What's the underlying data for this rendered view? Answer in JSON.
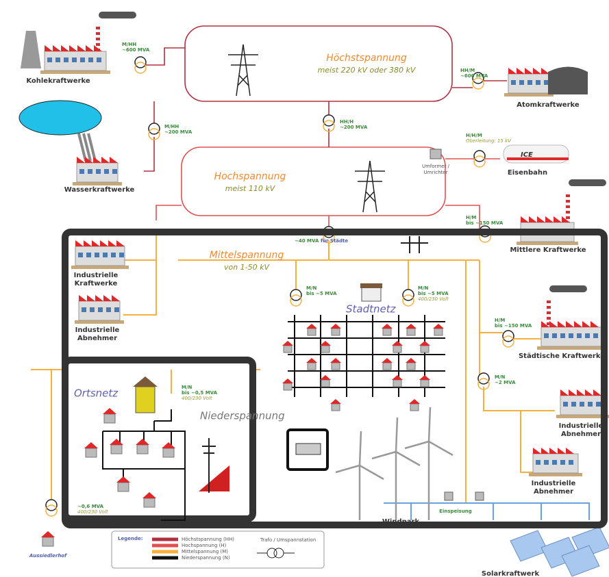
{
  "levels": [
    {
      "name": "Höchstspannung",
      "note": "meist 220 kV oder 380 kV"
    },
    {
      "name": "Hochspannung",
      "note": "meist 110 kV"
    },
    {
      "name": "Mittelspannung",
      "note": "von 1-50 kV"
    },
    {
      "name": "Niederspannung"
    }
  ],
  "sites": [
    [
      "Kohlekraftwerke"
    ],
    [
      "Atomkraftwerke"
    ],
    [
      "Wasserkraftwerke"
    ],
    [
      "Eisenbahn"
    ],
    [
      "Mittlere Kraftwerke"
    ],
    [
      "Industrielle",
      "Kraftwerke"
    ],
    [
      "Industrielle",
      "Abnehmer"
    ],
    [
      "Städtische Kraftwerke"
    ],
    [
      "Industrielle",
      "Abnehmer"
    ],
    [
      "Industrielle",
      "Abnehmer"
    ],
    [
      "Aussiedlerhof"
    ],
    [
      "Windpark"
    ],
    [
      "Solarkraftwerk"
    ]
  ],
  "transformers": [
    [
      "M/HH",
      "~600 MVA"
    ],
    [
      "HH/M",
      "~600 MVA"
    ],
    [
      "M/HH",
      "~200 MVA"
    ],
    [
      "HH/H",
      "~200 MVA"
    ],
    [
      "H/H/M",
      "Oberleitung: 15 kV"
    ],
    [
      "H/M",
      "bis ~150 MVA"
    ],
    [
      "~40 MVA",
      "für Städte"
    ],
    [
      "M/N",
      "bis ~5 MVA"
    ],
    [
      "M/N",
      "bis ~5 MVA",
      "400/230 Volt"
    ],
    [
      "H/M",
      "bis ~150 MVA"
    ],
    [
      "M/N",
      "~2 MVA"
    ],
    [
      "M/N",
      "bis ~0,5 MVA",
      "400/230 Volt"
    ],
    [
      "~0,6 MVA",
      "400/230 Volt"
    ]
  ],
  "networks": [
    "Stadtnetz",
    "Ortsnetz"
  ],
  "misc": {
    "converter": [
      "Umformer /",
      "Umrichter"
    ],
    "train": "ICE",
    "feed": "Einspeisung"
  },
  "legend": {
    "title": "Legende:",
    "items": [
      "Höchstspannung (HH)",
      "Hochspannung (H)",
      "Mittelspannung (M)",
      "Niederspannung (N)"
    ],
    "transformer": "Trafo / Umspannstation"
  }
}
